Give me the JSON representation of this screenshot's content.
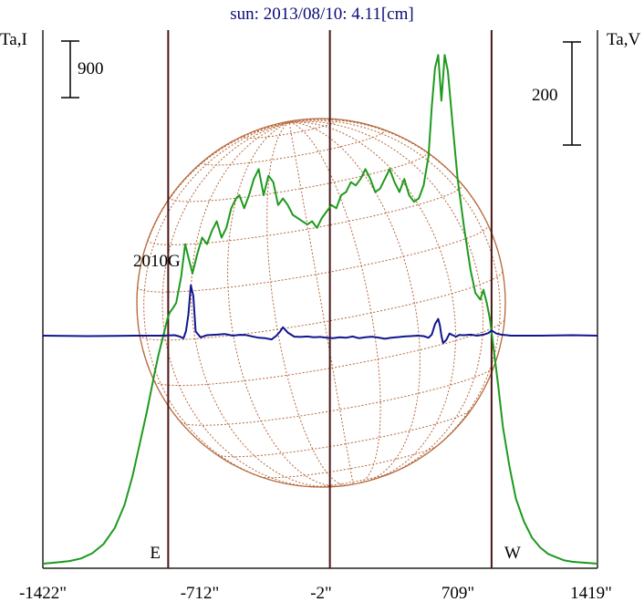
{
  "chart_data": {
    "type": "line",
    "title": "sun: 2013/08/10: 4.11[cm]",
    "left_axis_label": "Ta,I",
    "right_axis_label": "Ta,V",
    "xlim": [
      -1775,
      1655
    ],
    "x_ticks": [
      {
        "value": -1422,
        "label": "-1422\""
      },
      {
        "value": -712,
        "label": "-712\""
      },
      {
        "value": -2,
        "label": "-2\""
      },
      {
        "value": 709,
        "label": "709\""
      },
      {
        "value": 1419,
        "label": "1419\""
      }
    ],
    "scale_bars": [
      {
        "axis": "left",
        "label": "900"
      },
      {
        "axis": "right",
        "label": "200"
      }
    ],
    "limb_lines": [
      {
        "x": -1000,
        "label": "E"
      },
      {
        "x": 0,
        "label": ""
      },
      {
        "x": 1000,
        "label": "W"
      }
    ],
    "region_labels": [
      {
        "label": "2010G",
        "x": -850
      }
    ],
    "disk": {
      "radius": 1000,
      "color": "#b5673a",
      "grid": "dotted"
    },
    "colors": {
      "intensity": "#1e9a1e",
      "polarization": "#10168f",
      "limb_lines": "#4a1515",
      "axes": "#222222"
    },
    "series": [
      {
        "key": "I",
        "color": "#1e9a1e",
        "x": [
          -1775,
          -1690,
          -1610,
          -1540,
          -1470,
          -1400,
          -1330,
          -1270,
          -1220,
          -1175,
          -1130,
          -1090,
          -1060,
          -1030,
          -1005,
          -990,
          -970,
          -950,
          -920,
          -895,
          -875,
          -850,
          -820,
          -790,
          -760,
          -730,
          -700,
          -670,
          -640,
          -610,
          -580,
          -560,
          -530,
          -500,
          -470,
          -440,
          -410,
          -380,
          -350,
          -320,
          -290,
          -260,
          -230,
          -200,
          -170,
          -140,
          -110,
          -80,
          -50,
          -20,
          10,
          40,
          70,
          100,
          130,
          160,
          190,
          220,
          250,
          280,
          310,
          340,
          370,
          400,
          430,
          460,
          490,
          520,
          550,
          580,
          610,
          630,
          650,
          670,
          690,
          710,
          730,
          760,
          790,
          830,
          870,
          900,
          930,
          950,
          970,
          990,
          1010,
          1040,
          1070,
          1110,
          1150,
          1200,
          1250,
          1300,
          1350,
          1400,
          1450,
          1500,
          1550,
          1600,
          1655
        ],
        "y": [
          0,
          20,
          40,
          80,
          160,
          300,
          550,
          900,
          1350,
          1850,
          2350,
          2850,
          3200,
          3500,
          3750,
          3850,
          3920,
          4000,
          4400,
          4900,
          4700,
          4450,
          4750,
          5000,
          4900,
          5100,
          5250,
          5000,
          5150,
          5450,
          5600,
          5650,
          5450,
          5650,
          5900,
          6050,
          5650,
          5950,
          5850,
          5500,
          5600,
          5500,
          5350,
          5300,
          5250,
          5200,
          5250,
          5150,
          5300,
          5400,
          5500,
          5450,
          5650,
          5700,
          5850,
          5800,
          5900,
          6050,
          5900,
          5700,
          5750,
          5900,
          6050,
          5850,
          5700,
          5900,
          5650,
          5550,
          5600,
          5800,
          6250,
          7000,
          7600,
          7800,
          7100,
          7800,
          7550,
          6700,
          5900,
          5150,
          4500,
          4150,
          4050,
          4200,
          4000,
          3750,
          3350,
          2750,
          2100,
          1500,
          1000,
          650,
          400,
          250,
          150,
          100,
          50,
          30,
          20,
          10,
          0
        ]
      },
      {
        "key": "V",
        "color": "#10168f",
        "x": [
          -1775,
          -1500,
          -1200,
          -1050,
          -1000,
          -960,
          -930,
          -905,
          -890,
          -875,
          -860,
          -845,
          -830,
          -800,
          -760,
          -700,
          -650,
          -600,
          -560,
          -520,
          -480,
          -440,
          -400,
          -360,
          -330,
          -310,
          -290,
          -260,
          -220,
          -180,
          -140,
          -100,
          -60,
          -20,
          20,
          60,
          100,
          140,
          180,
          220,
          260,
          300,
          340,
          380,
          420,
          460,
          500,
          540,
          580,
          610,
          630,
          650,
          670,
          680,
          690,
          700,
          720,
          740,
          760,
          780,
          800,
          830,
          870,
          910,
          950,
          980,
          1000,
          1030,
          1060,
          1120,
          1300,
          1500,
          1655
        ],
        "y": [
          0,
          -2,
          0,
          0,
          1,
          2,
          -4,
          -12,
          22,
          100,
          240,
          190,
          20,
          -8,
          2,
          5,
          8,
          0,
          4,
          3,
          -4,
          -10,
          -12,
          -18,
          0,
          18,
          40,
          15,
          -5,
          -6,
          -4,
          -8,
          -6,
          -10,
          -12,
          -8,
          -10,
          -4,
          -12,
          -8,
          -5,
          -9,
          -15,
          -10,
          -7,
          -4,
          -2,
          0,
          -2,
          -10,
          5,
          55,
          80,
          50,
          0,
          -35,
          -20,
          10,
          2,
          -5,
          3,
          2,
          5,
          0,
          5,
          12,
          25,
          10,
          5,
          0,
          0,
          2,
          0
        ]
      }
    ]
  }
}
